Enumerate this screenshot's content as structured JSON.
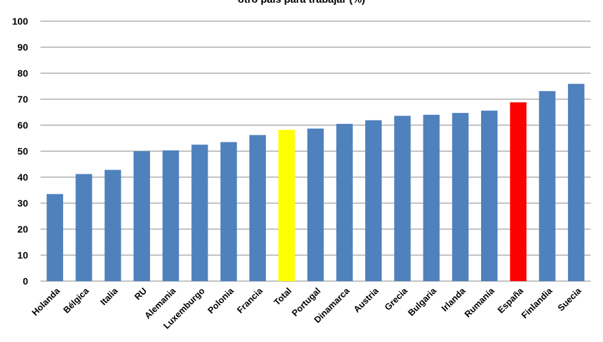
{
  "chart_data": {
    "type": "bar",
    "title": "otro país  para trabajar (%)",
    "categories": [
      "Holanda",
      "Bélgica",
      "Italia",
      "RU",
      "Alemania",
      "Luxemburgo",
      "Polonia",
      "Francia",
      "Total",
      "Portugal",
      "Dinamarca",
      "Austria",
      "Grecia",
      "Bulgaria",
      "Irlanda",
      "Rumanía",
      "España",
      "Finlandia",
      "Suecia"
    ],
    "values": [
      33.5,
      41.2,
      42.8,
      50.0,
      50.3,
      52.5,
      53.5,
      56.2,
      58.2,
      58.7,
      60.5,
      61.9,
      63.6,
      64.0,
      64.7,
      65.6,
      68.8,
      73.1,
      75.9
    ],
    "highlight": {
      "Total": "#ffff00",
      "España": "#ff0000"
    },
    "bar_color": "#4f81bd",
    "ylim": [
      0,
      100
    ],
    "yticks": [
      0,
      10,
      20,
      30,
      40,
      50,
      60,
      70,
      80,
      90,
      100
    ],
    "grid": true,
    "legend": "none",
    "xlabel": "",
    "ylabel": ""
  }
}
